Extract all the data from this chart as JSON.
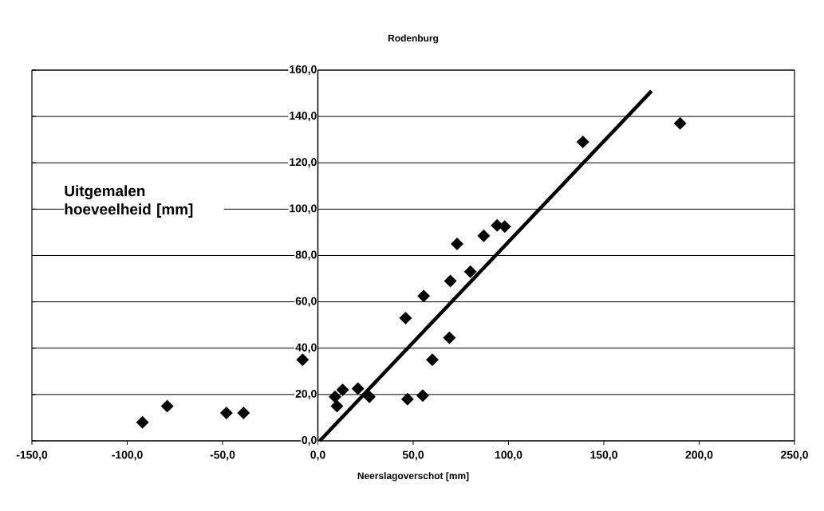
{
  "chart_data": {
    "type": "scatter",
    "title": "Rodenburg",
    "xlabel": "Neerslagoverschot [mm]",
    "ylabel": "Uitgemalen hoeveelheid [mm]",
    "xlim": [
      -150,
      250
    ],
    "ylim": [
      0,
      160
    ],
    "xticks": [
      {
        "value": -150,
        "label": "-150,0"
      },
      {
        "value": -100,
        "label": "-100,0"
      },
      {
        "value": -50,
        "label": "-50,0"
      },
      {
        "value": 0,
        "label": "0,0"
      },
      {
        "value": 50,
        "label": "50,0"
      },
      {
        "value": 100,
        "label": "100,0"
      },
      {
        "value": 150,
        "label": "150,0"
      },
      {
        "value": 200,
        "label": "200,0"
      },
      {
        "value": 250,
        "label": "250,0"
      }
    ],
    "yticks": [
      {
        "value": 0,
        "label": "0,0"
      },
      {
        "value": 20,
        "label": "20,0"
      },
      {
        "value": 40,
        "label": "40,0"
      },
      {
        "value": 60,
        "label": "60,0"
      },
      {
        "value": 80,
        "label": "80,0"
      },
      {
        "value": 100,
        "label": "100,0"
      },
      {
        "value": 120,
        "label": "120,0"
      },
      {
        "value": 140,
        "label": "140,0"
      },
      {
        "value": 160,
        "label": "160,0"
      }
    ],
    "grid": "y",
    "series": [
      {
        "type": "scatter",
        "color": "#000000",
        "marker": "diamond",
        "x": [
          -92,
          -79,
          -48,
          -39,
          -8,
          10,
          9,
          13,
          21,
          27,
          47,
          55,
          60,
          69,
          46,
          55.5,
          69.5,
          80,
          73,
          87,
          94,
          98,
          139,
          190
        ],
        "values": [
          8,
          15,
          12,
          12,
          35,
          15,
          19,
          22,
          22.5,
          19,
          18,
          19.5,
          35,
          44.5,
          53,
          62.5,
          69,
          73,
          85,
          88.5,
          93,
          92.5,
          129,
          137
        ]
      },
      {
        "type": "line",
        "color": "#000000",
        "marker": "none",
        "x": [
          1,
          175
        ],
        "values": [
          0,
          151
        ]
      }
    ]
  }
}
